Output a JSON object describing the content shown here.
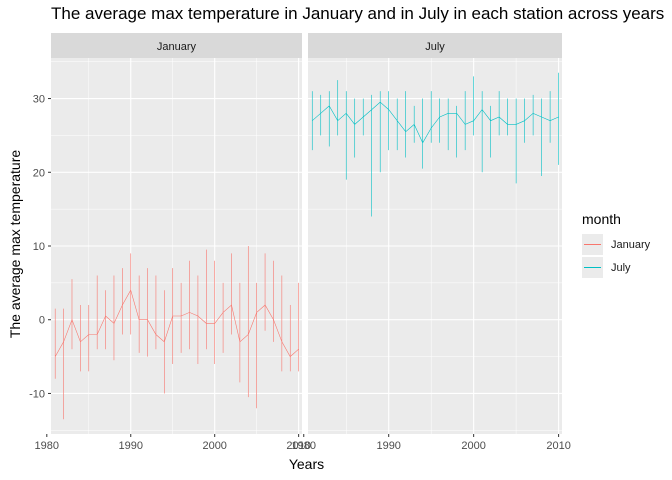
{
  "chart_data": {
    "type": "line",
    "title": "The average max temperature in January and in July in each station across years",
    "xlabel": "Years",
    "ylabel": "The average max temperature",
    "legend_title": "month",
    "legend_position": "right",
    "grid": true,
    "xlim": [
      1980.5,
      2010.4
    ],
    "ylim": [
      -15.5,
      35.5
    ],
    "x_ticks": [
      1980,
      1990,
      2000,
      2010
    ],
    "y_ticks": [
      -10,
      0,
      10,
      20,
      30
    ],
    "x_tick_labels": [
      "1980",
      "1990",
      "2000",
      "2010"
    ],
    "y_tick_labels": [
      "-10",
      "0",
      "10",
      "20",
      "30"
    ],
    "facets": [
      {
        "label": "January",
        "color": "#F8766D",
        "series": [
          {
            "name": "January",
            "x": [
              1981,
              1982,
              1983,
              1984,
              1985,
              1986,
              1987,
              1988,
              1989,
              1990,
              1991,
              1992,
              1993,
              1994,
              1995,
              1996,
              1997,
              1998,
              1999,
              2000,
              2001,
              2002,
              2003,
              2004,
              2005,
              2006,
              2007,
              2008,
              2009,
              2010
            ],
            "low": [
              -8,
              -13.5,
              -4,
              -7,
              -7,
              -4,
              -4,
              -5.5,
              -2,
              -2,
              -4.5,
              -5,
              -4,
              -10,
              -6,
              -4.5,
              -4,
              -6,
              -4,
              -6,
              -4.5,
              -2,
              -8.5,
              -10.5,
              -12,
              -1.5,
              -3,
              -7,
              -7,
              -7
            ],
            "high": [
              1.5,
              1.5,
              5.5,
              2,
              2,
              6,
              4,
              6,
              7,
              9,
              6,
              7,
              6,
              4,
              7,
              5,
              8,
              6,
              9.5,
              8,
              5,
              9,
              5,
              10,
              5,
              9,
              8,
              6,
              2,
              5
            ],
            "mid": [
              -5,
              -3,
              0,
              -3,
              -2,
              -2,
              0.5,
              -0.5,
              2,
              4,
              0,
              0,
              -2,
              -3,
              0.5,
              0.5,
              1,
              0.5,
              -0.5,
              -0.5,
              1,
              2,
              -3,
              -2,
              1,
              2,
              0,
              -3,
              -5,
              -4
            ]
          }
        ]
      },
      {
        "label": "July",
        "color": "#00BFC4",
        "series": [
          {
            "name": "July",
            "x": [
              1981,
              1982,
              1983,
              1984,
              1985,
              1986,
              1987,
              1988,
              1989,
              1990,
              1991,
              1992,
              1993,
              1994,
              1995,
              1996,
              1997,
              1998,
              1999,
              2000,
              2001,
              2002,
              2003,
              2004,
              2005,
              2006,
              2007,
              2008,
              2009,
              2010
            ],
            "low": [
              23,
              25,
              23.5,
              25,
              19,
              22,
              25,
              14,
              20,
              23,
              23,
              22,
              24,
              20.5,
              24,
              24,
              23,
              22,
              23,
              25,
              20,
              22,
              25,
              25,
              18.5,
              24,
              25,
              19.5,
              24,
              21
            ],
            "high": [
              31,
              30.5,
              31,
              32.5,
              31,
              30,
              30,
              30.5,
              31,
              31,
              30,
              31,
              29,
              30,
              31,
              30,
              30,
              29,
              31,
              33,
              31,
              29,
              31,
              30,
              30,
              30,
              30.5,
              30,
              31,
              33.5
            ],
            "mid": [
              27,
              28,
              29,
              27,
              28,
              26.5,
              27.5,
              28.5,
              29.5,
              28.5,
              27,
              25.5,
              26.5,
              24,
              26,
              27.5,
              28,
              28,
              26.5,
              27,
              28.5,
              27,
              27.5,
              26.5,
              26.5,
              27,
              28,
              27.5,
              27,
              27.5
            ]
          }
        ]
      }
    ]
  }
}
